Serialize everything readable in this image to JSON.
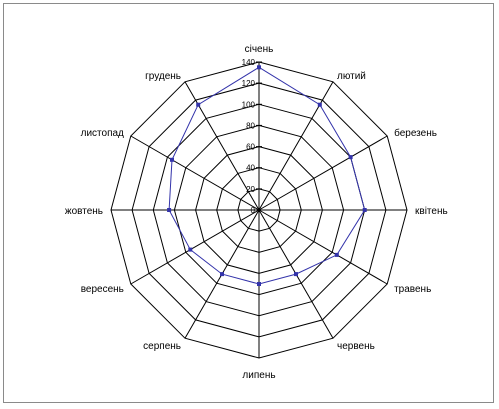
{
  "chart_data": {
    "type": "radar",
    "categories": [
      "січень",
      "лютий",
      "березень",
      "квітень",
      "травень",
      "червень",
      "липень",
      "серпень",
      "вересень",
      "жовтень",
      "листопад",
      "грудень"
    ],
    "series": [
      {
        "values": [
          135,
          115,
          100,
          100,
          85,
          70,
          70,
          70,
          75,
          85,
          95,
          115
        ]
      }
    ],
    "rlim": [
      0,
      140
    ],
    "ticks": [
      0,
      20,
      40,
      60,
      80,
      100,
      120,
      140
    ],
    "colors": {
      "series": "#3333aa",
      "grid": "#000000",
      "frame": "#8a8a8a"
    },
    "grid": true,
    "legend": "none"
  }
}
